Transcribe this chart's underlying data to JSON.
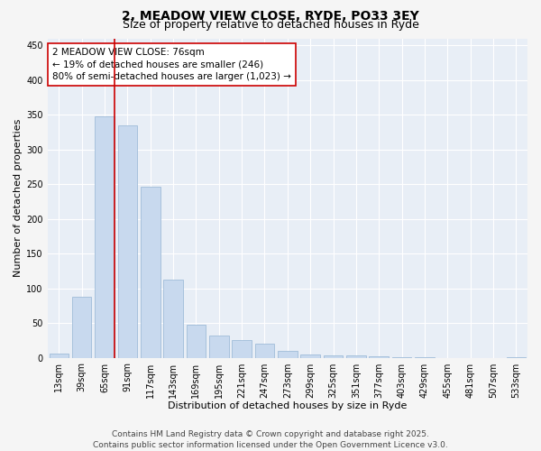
{
  "title_line1": "2, MEADOW VIEW CLOSE, RYDE, PO33 3EY",
  "title_line2": "Size of property relative to detached houses in Ryde",
  "xlabel": "Distribution of detached houses by size in Ryde",
  "ylabel": "Number of detached properties",
  "categories": [
    "13sqm",
    "39sqm",
    "65sqm",
    "91sqm",
    "117sqm",
    "143sqm",
    "169sqm",
    "195sqm",
    "221sqm",
    "247sqm",
    "273sqm",
    "299sqm",
    "325sqm",
    "351sqm",
    "377sqm",
    "403sqm",
    "429sqm",
    "455sqm",
    "481sqm",
    "507sqm",
    "533sqm"
  ],
  "values": [
    6,
    88,
    348,
    335,
    246,
    113,
    48,
    32,
    25,
    20,
    10,
    5,
    4,
    3,
    2,
    1,
    1,
    0,
    0,
    0,
    1
  ],
  "bar_color": "#c8d9ee",
  "bar_edge_color": "#a0bcd8",
  "vline_color": "#cc0000",
  "vline_index": 2.43,
  "annotation_text": "2 MEADOW VIEW CLOSE: 76sqm\n← 19% of detached houses are smaller (246)\n80% of semi-detached houses are larger (1,023) →",
  "annotation_box_color": "#ffffff",
  "annotation_box_edge_color": "#cc0000",
  "ylim": [
    0,
    460
  ],
  "yticks": [
    0,
    50,
    100,
    150,
    200,
    250,
    300,
    350,
    400,
    450
  ],
  "plot_bg_color": "#e8eef6",
  "fig_bg_color": "#f5f5f5",
  "grid_color": "#ffffff",
  "footnote": "Contains HM Land Registry data © Crown copyright and database right 2025.\nContains public sector information licensed under the Open Government Licence v3.0.",
  "title_fontsize": 10,
  "subtitle_fontsize": 9,
  "label_fontsize": 8,
  "tick_fontsize": 7,
  "annotation_fontsize": 7.5,
  "footnote_fontsize": 6.5
}
